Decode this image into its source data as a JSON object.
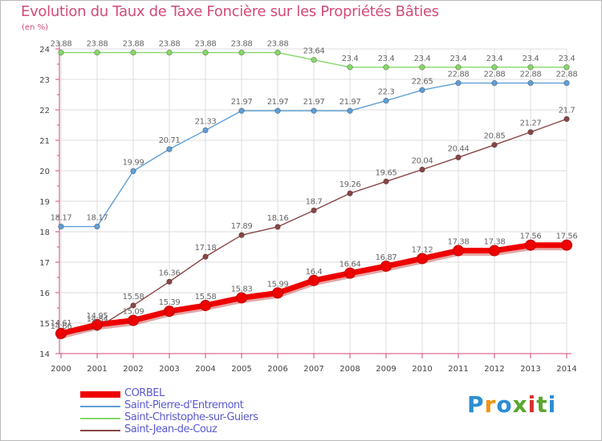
{
  "title": "Evolution du Taux de Taxe Foncière sur les Propriétés Bâties",
  "unit": "(en %)",
  "logo": {
    "text": "Proxiti",
    "colors": [
      "#2b8fd3",
      "#f29312",
      "#2b8fd3",
      "#5aa72e",
      "#d8302f",
      "#5aa72e",
      "#2b8fd3"
    ]
  },
  "chart_data": {
    "type": "line",
    "x": [
      "2000",
      "2001",
      "2002",
      "2003",
      "2004",
      "2005",
      "2006",
      "2007",
      "2008",
      "2009",
      "2010",
      "2011",
      "2012",
      "2013",
      "2014"
    ],
    "ylim": [
      14,
      24
    ],
    "yticks": [
      "14",
      "15",
      "16",
      "17",
      "18",
      "19",
      "20",
      "21",
      "22",
      "23",
      "24"
    ],
    "grid": true,
    "legend_position": "bottom-left",
    "series": [
      {
        "name": "CORBEL",
        "color": "#ee0000",
        "values": [
          14.66,
          14.95,
          15.09,
          15.39,
          15.58,
          15.83,
          15.99,
          16.4,
          16.64,
          16.87,
          17.12,
          17.38,
          17.38,
          17.56,
          17.56
        ],
        "labels": [
          "14.66",
          "14.95",
          "15.09",
          "15.39",
          "15.58",
          "15.83",
          "15.99",
          "16.4",
          "16.64",
          "16.87",
          "17.12",
          "17.38",
          "17.38",
          "17.56",
          "17.56"
        ]
      },
      {
        "name": "Saint-Pierre-d'Entremont",
        "color": "#5f9fd6",
        "values": [
          18.17,
          18.17,
          19.99,
          20.71,
          21.33,
          21.97,
          21.97,
          21.97,
          21.97,
          22.3,
          22.65,
          22.88,
          22.88,
          22.88,
          22.88
        ],
        "labels": [
          "18.17",
          "18.17",
          "19.99",
          "20.71",
          "21.33",
          "21.97",
          "21.97",
          "21.97",
          "21.97",
          "22.3",
          "22.65",
          "22.88",
          "22.88",
          "22.88",
          "22.88"
        ]
      },
      {
        "name": "Saint-Christophe-sur-Guiers",
        "color": "#86d86a",
        "values": [
          23.88,
          23.88,
          23.88,
          23.88,
          23.88,
          23.88,
          23.88,
          23.64,
          23.4,
          23.4,
          23.4,
          23.4,
          23.4,
          23.4,
          23.4
        ],
        "labels": [
          "23.88",
          "23.88",
          "23.88",
          "23.88",
          "23.88",
          "23.88",
          "23.88",
          "23.64",
          "23.4",
          "23.4",
          "23.4",
          "23.4",
          "23.4",
          "23.4",
          "23.4"
        ]
      },
      {
        "name": "Saint-Jean-de-Couz",
        "color": "#8a4545",
        "values": [
          14.61,
          14.84,
          15.58,
          16.36,
          17.18,
          17.89,
          18.16,
          18.7,
          19.26,
          19.65,
          20.04,
          20.44,
          20.85,
          21.27,
          21.7
        ],
        "labels": [
          "14.61",
          "14.84",
          "15.58",
          "16.36",
          "17.18",
          "17.89",
          "18.16",
          "18.7",
          "19.26",
          "19.65",
          "20.04",
          "20.44",
          "20.85",
          "21.27",
          "21.7"
        ]
      }
    ]
  }
}
